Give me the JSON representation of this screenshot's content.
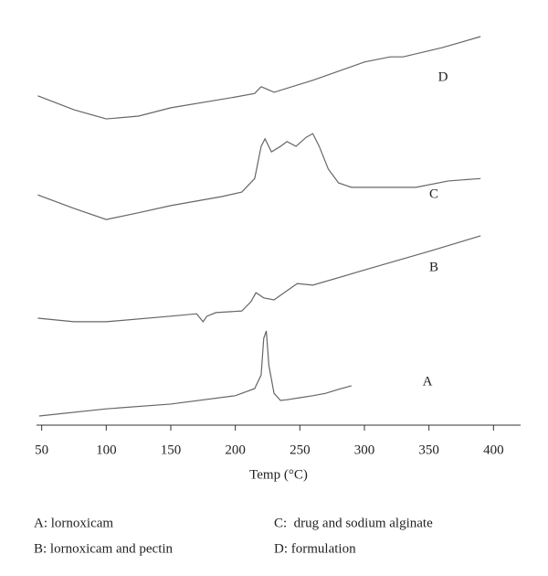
{
  "chart_data": {
    "type": "line",
    "x_label": "Temp (°C)",
    "xlim": [
      46,
      421
    ],
    "xticks": [
      50,
      100,
      150,
      200,
      250,
      300,
      350,
      400
    ],
    "ylim": [
      0,
      100
    ],
    "series": [
      {
        "name": "A",
        "color": "#666666",
        "x": [
          48,
          100,
          150,
          200,
          215,
          220,
          222,
          224,
          226,
          230,
          235,
          240,
          250,
          260,
          270,
          280,
          290
        ],
        "values": [
          2.3,
          4.1,
          5.3,
          7.4,
          9.2,
          12.6,
          21.8,
          23.7,
          15,
          8,
          6.2,
          6.4,
          6.9,
          7.4,
          8,
          9,
          9.9
        ]
      },
      {
        "name": "B",
        "color": "#666666",
        "x": [
          47,
          75,
          100,
          150,
          170,
          175,
          178,
          185,
          205,
          212,
          216,
          222,
          230,
          240,
          248,
          260,
          300,
          350,
          390
        ],
        "values": [
          26.9,
          26,
          26,
          27.4,
          28,
          26,
          27.4,
          28.3,
          28.7,
          31,
          33.3,
          32,
          31.5,
          33.8,
          35.6,
          35.2,
          39,
          43.7,
          47.6
        ]
      },
      {
        "name": "C",
        "color": "#666666",
        "x": [
          47,
          75,
          100,
          125,
          150,
          190,
          205,
          215,
          220,
          223,
          228,
          235,
          240,
          247,
          255,
          260,
          265,
          272,
          280,
          290,
          340,
          365,
          390
        ],
        "values": [
          57.9,
          54.5,
          51.7,
          53.4,
          55.2,
          57.5,
          58.6,
          62,
          70.1,
          72,
          68.7,
          70.1,
          71.3,
          70.1,
          72.4,
          73.3,
          70.1,
          64.4,
          60.9,
          59.8,
          59.8,
          61.4,
          62
        ]
      },
      {
        "name": "D",
        "color": "#666666",
        "x": [
          47,
          75,
          100,
          125,
          150,
          200,
          215,
          220,
          225,
          230,
          260,
          300,
          320,
          330,
          360,
          390
        ],
        "values": [
          82.8,
          79.3,
          77,
          77.7,
          79.8,
          82.5,
          83.4,
          85.1,
          84.4,
          83.7,
          86.7,
          91.3,
          92.6,
          92.6,
          94.9,
          97.7
        ]
      }
    ],
    "legend": [
      "A: lornoxicam",
      "C:  drug and sodium alginate",
      "B: lornoxicam and pectin",
      "D: formulation"
    ]
  }
}
